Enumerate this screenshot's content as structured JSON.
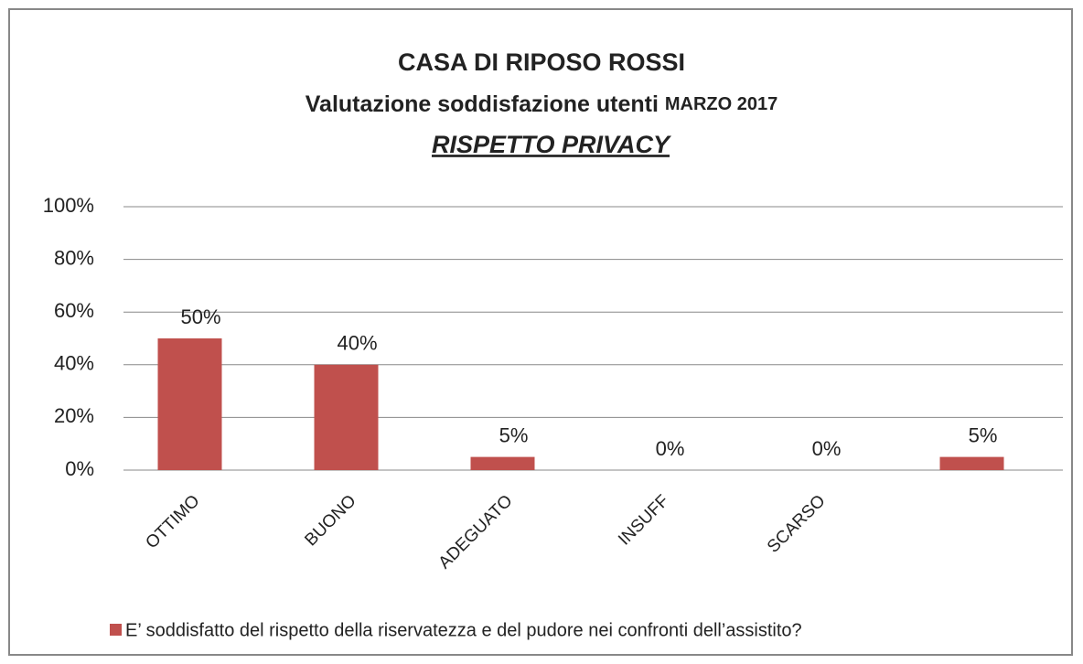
{
  "chart_data": {
    "type": "bar",
    "title": "CASA DI RIPOSO ROSSI",
    "subtitle": "Valutazione soddisfazione utenti",
    "subtitle_date": "MARZO 2017",
    "heading": "RISPETTO PRIVACY",
    "categories": [
      "OTTIMO",
      "BUONO",
      "ADEGUATO",
      "INSUFF",
      "SCARSO",
      null
    ],
    "series": [
      {
        "name": "E’ soddisfatto del rispetto della riservatezza e del pudore nei confronti dell’assistito?",
        "color": "#c0504d",
        "values": [
          50,
          40,
          5,
          0,
          0,
          5
        ],
        "value_labels": [
          "50%",
          "40%",
          "5%",
          "0%",
          "0%",
          "5%"
        ]
      }
    ],
    "ylim": [
      0,
      100
    ],
    "yticks": [
      {
        "value": 0,
        "label": "0%"
      },
      {
        "value": 20,
        "label": "20%"
      },
      {
        "value": 40,
        "label": "40%"
      },
      {
        "value": 60,
        "label": "60%"
      },
      {
        "value": 80,
        "label": "80%"
      },
      {
        "value": 100,
        "label": "100%"
      }
    ],
    "grid": true,
    "legend": "bottom"
  }
}
